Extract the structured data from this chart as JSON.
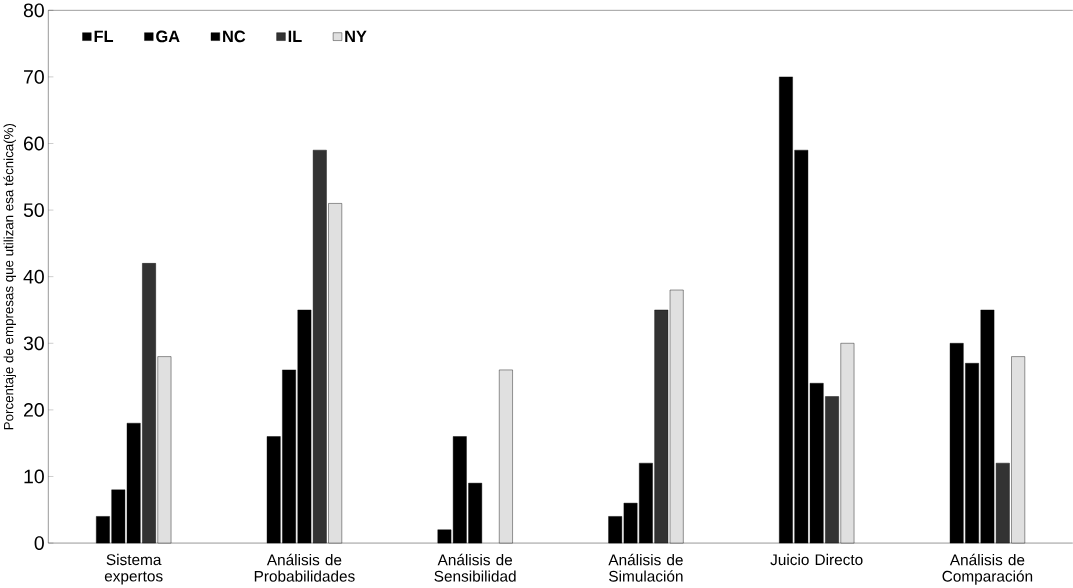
{
  "chart_data": {
    "type": "bar",
    "ylabel": "Porcentaje de empresas que utilizan esa técnica(%)",
    "categories": [
      "Sistema expertos",
      "Análisis de Probabilidades",
      "Análisis de Sensibilidad",
      "Análisis de Simulación",
      "Juicio Directo",
      "Análisis de Comparación"
    ],
    "series": [
      {
        "name": "FL",
        "color": "#000000",
        "values": [
          4,
          16,
          2,
          4,
          70,
          30
        ]
      },
      {
        "name": "GA",
        "color": "#000000",
        "values": [
          8,
          26,
          16,
          6,
          59,
          27
        ]
      },
      {
        "name": "NC",
        "color": "#000000",
        "values": [
          18,
          35,
          9,
          12,
          24,
          35
        ]
      },
      {
        "name": "IL",
        "color": "#333333",
        "values": [
          42,
          59,
          null,
          35,
          22,
          12
        ]
      },
      {
        "name": "NY",
        "color": "#e0e0e0",
        "values": [
          28,
          51,
          26,
          38,
          30,
          28
        ]
      }
    ],
    "ylim": [
      0,
      80
    ],
    "yticks": [
      0,
      10,
      20,
      30,
      40,
      50,
      60,
      70,
      80
    ],
    "grid": false,
    "legend": "top left"
  }
}
